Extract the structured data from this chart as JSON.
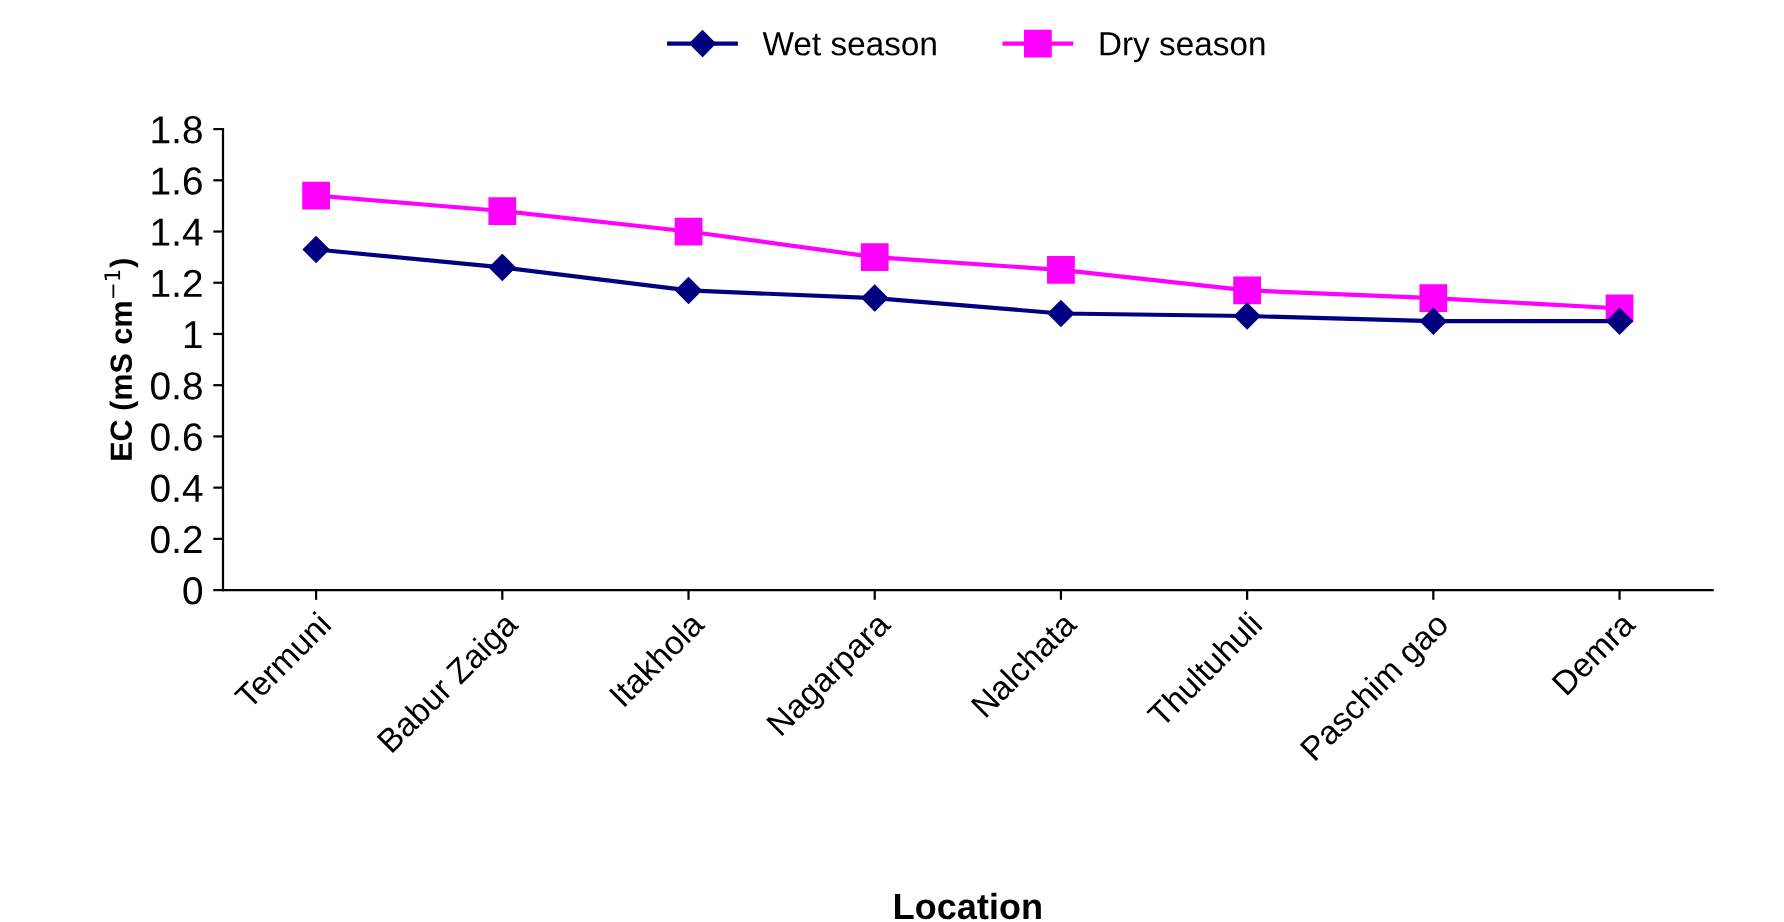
{
  "chart_data": {
    "type": "line",
    "xlabel": "Location",
    "ylabel": "EC (mS cm$^{−1}$)",
    "categories": [
      "Termuni",
      "Babur Zaiga",
      "Itakhola",
      "Nagarpara",
      "Nalchata",
      "Thultuhuli",
      "Paschim gao",
      "Demra"
    ],
    "series": [
      {
        "name": "Wet season",
        "color": "#000080",
        "marker": "diamond",
        "values": [
          1.33,
          1.26,
          1.17,
          1.14,
          1.08,
          1.07,
          1.05,
          1.05
        ]
      },
      {
        "name": "Dry season",
        "color": "#ff00ff",
        "marker": "square",
        "values": [
          1.54,
          1.48,
          1.4,
          1.3,
          1.25,
          1.17,
          1.14,
          1.1
        ]
      }
    ],
    "ylim": [
      0,
      1.8
    ],
    "yticks": [
      0,
      0.2,
      0.4,
      0.6,
      0.8,
      1,
      1.2,
      1.4,
      1.6,
      1.8
    ],
    "grid": false,
    "legend": "top",
    "line_style": "solid"
  }
}
